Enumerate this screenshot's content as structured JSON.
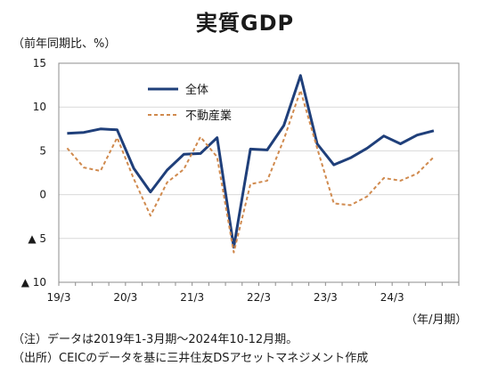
{
  "chart_data": {
    "type": "line",
    "title": "実質GDP",
    "ylabel": "（前年同期比、%）",
    "xunit": "（年/月期）",
    "ylim": [
      -10,
      15
    ],
    "yticks": [
      {
        "value": 15,
        "label": "15"
      },
      {
        "value": 10,
        "label": "10"
      },
      {
        "value": 5,
        "label": "5"
      },
      {
        "value": 0,
        "label": "0"
      },
      {
        "value": -5,
        "label": "▲ 5"
      },
      {
        "value": -10,
        "label": "▲ 10"
      }
    ],
    "x": [
      "19/3",
      "19/6",
      "19/9",
      "19/12",
      "20/3",
      "20/6",
      "20/9",
      "20/12",
      "21/3",
      "21/6",
      "21/9",
      "21/12",
      "22/3",
      "22/6",
      "22/9",
      "22/12",
      "23/3",
      "23/6",
      "23/9",
      "23/12",
      "24/3",
      "24/6",
      "24/9",
      "24/12"
    ],
    "xticks": [
      {
        "index": 0,
        "label": "19/3"
      },
      {
        "index": 4,
        "label": "20/3"
      },
      {
        "index": 8,
        "label": "21/3"
      },
      {
        "index": 12,
        "label": "22/3"
      },
      {
        "index": 16,
        "label": "23/3"
      },
      {
        "index": 20,
        "label": "24/3"
      }
    ],
    "series": [
      {
        "name": "全体",
        "color": "#1f3f7a",
        "style": "solid",
        "values": [
          7.0,
          7.1,
          7.5,
          7.4,
          3.0,
          0.3,
          2.8,
          4.6,
          4.7,
          6.5,
          -6.0,
          5.2,
          5.1,
          7.9,
          13.6,
          5.8,
          3.4,
          4.2,
          5.3,
          6.7,
          5.8,
          6.8,
          7.3,
          null
        ],
        "dash": ""
      },
      {
        "name": "不動産業",
        "color": "#d08a4e",
        "style": "dashed",
        "values": [
          5.3,
          3.1,
          2.7,
          6.5,
          1.8,
          -2.4,
          1.4,
          2.9,
          6.6,
          4.3,
          -6.6,
          1.2,
          1.6,
          6.3,
          11.9,
          5.3,
          -1.0,
          -1.2,
          -0.2,
          1.9,
          1.6,
          2.4,
          4.3,
          null
        ],
        "dash": "4,3"
      }
    ],
    "grid": "horizontal",
    "legend": "top-left-inside"
  },
  "notes": [
    "（注）データは2019年1-3月期～2024年10-12月期。",
    "（出所）CEICのデータを基に三井住友DSアセットマネジメント作成"
  ]
}
